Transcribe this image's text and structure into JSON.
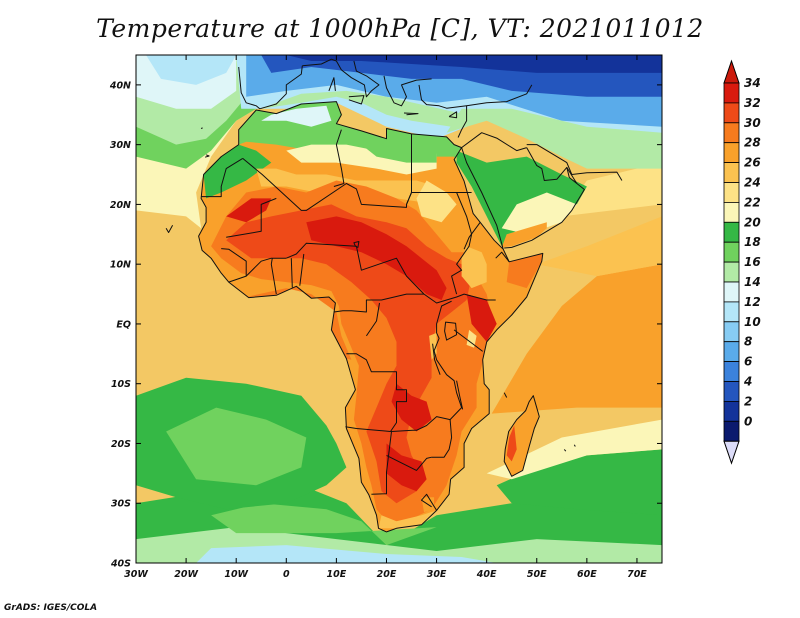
{
  "title": "Temperature at 1000hPa [C], VT: 2021011012",
  "footer": "GrADS: IGES/COLA",
  "colors": {
    "frame": "#000000",
    "ocean_default": "#f3c864",
    "land_hot": "#e0401c",
    "border": "#111111"
  },
  "map": {
    "lon_range": [
      -30,
      75
    ],
    "lat_range": [
      -40,
      45
    ],
    "lon_ticks": [
      {
        "v": -30,
        "label": "30W"
      },
      {
        "v": -20,
        "label": "20W"
      },
      {
        "v": -10,
        "label": "10W"
      },
      {
        "v": 0,
        "label": "0"
      },
      {
        "v": 10,
        "label": "10E"
      },
      {
        "v": 20,
        "label": "20E"
      },
      {
        "v": 30,
        "label": "30E"
      },
      {
        "v": 40,
        "label": "40E"
      },
      {
        "v": 50,
        "label": "50E"
      },
      {
        "v": 60,
        "label": "60E"
      },
      {
        "v": 70,
        "label": "70E"
      }
    ],
    "lat_ticks": [
      {
        "v": 40,
        "label": "40N"
      },
      {
        "v": 30,
        "label": "30N"
      },
      {
        "v": 20,
        "label": "20N"
      },
      {
        "v": 10,
        "label": "10N"
      },
      {
        "v": 0,
        "label": "EQ"
      },
      {
        "v": -10,
        "label": "10S"
      },
      {
        "v": -20,
        "label": "20S"
      },
      {
        "v": -30,
        "label": "30S"
      },
      {
        "v": -40,
        "label": "40S"
      }
    ]
  },
  "colorbar": {
    "levels": [
      {
        "label": "34",
        "color": "#d91a0e"
      },
      {
        "label": "32",
        "color": "#ee4a18"
      },
      {
        "label": "30",
        "color": "#f77b1e"
      },
      {
        "label": "28",
        "color": "#f9a12b"
      },
      {
        "label": "26",
        "color": "#fbc250"
      },
      {
        "label": "24",
        "color": "#fde286"
      },
      {
        "label": "22",
        "color": "#fbf6b8"
      },
      {
        "label": "20",
        "color": "#35b845"
      },
      {
        "label": "18",
        "color": "#70d25e"
      },
      {
        "label": "16",
        "color": "#b2eaa6"
      },
      {
        "label": "14",
        "color": "#dff6f8"
      },
      {
        "label": "12",
        "color": "#b4e6f8"
      },
      {
        "label": "10",
        "color": "#87ccf3"
      },
      {
        "label": "8",
        "color": "#5aabea"
      },
      {
        "label": "6",
        "color": "#3b82dc"
      },
      {
        "label": "4",
        "color": "#2456be"
      },
      {
        "label": "2",
        "color": "#13339a"
      },
      {
        "label": "0",
        "color": "#0b1a6e"
      }
    ],
    "top_color": "#cc1a0c",
    "bottom_color": "#dcdcf8"
  }
}
